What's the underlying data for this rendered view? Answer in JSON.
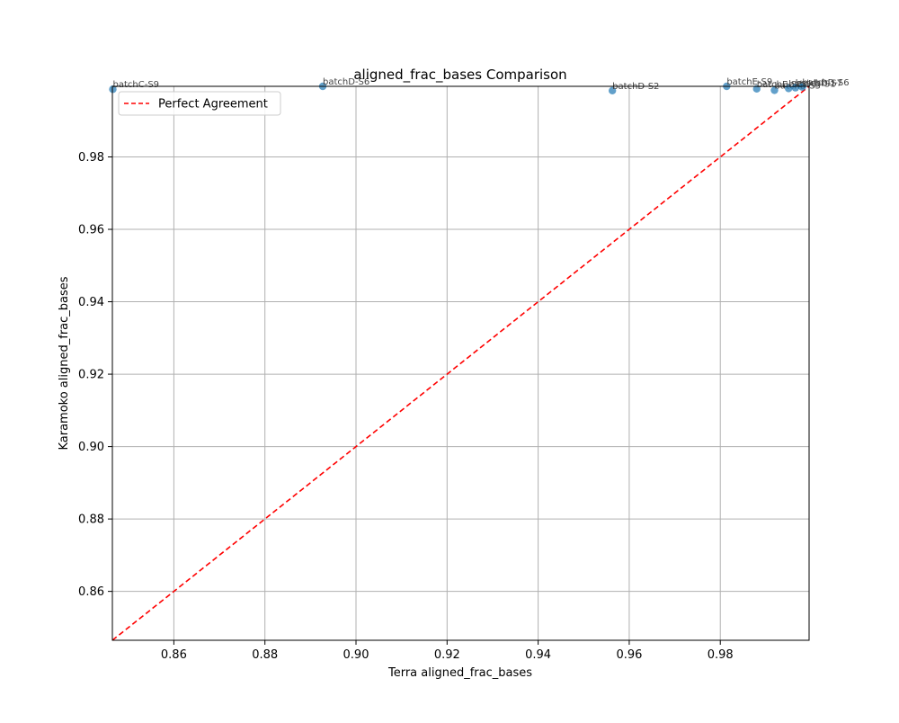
{
  "chart_data": {
    "type": "scatter",
    "title": "aligned_frac_bases Comparison",
    "xlabel": "Terra aligned_frac_bases",
    "ylabel": "Karamoko aligned_frac_bases",
    "xlim": [
      0.8465,
      0.9995
    ],
    "ylim": [
      0.8465,
      0.9995
    ],
    "xticks": [
      0.86,
      0.88,
      0.9,
      0.92,
      0.94,
      0.96,
      0.98
    ],
    "yticks": [
      0.86,
      0.88,
      0.9,
      0.92,
      0.94,
      0.96,
      0.98
    ],
    "xtick_labels": [
      "0.86",
      "0.88",
      "0.90",
      "0.92",
      "0.94",
      "0.96",
      "0.98"
    ],
    "ytick_labels": [
      "0.86",
      "0.88",
      "0.90",
      "0.92",
      "0.94",
      "0.96",
      "0.98"
    ],
    "grid": true,
    "legend": {
      "location": "upper-left",
      "entries": [
        {
          "label": "Perfect Agreement",
          "color": "#ff0000",
          "style": "dashed"
        }
      ]
    },
    "reference_line": {
      "from": [
        0.8465,
        0.8465
      ],
      "to": [
        0.9995,
        0.9995
      ],
      "color": "#ff0000"
    },
    "point_color": "#1f77b4",
    "points": [
      {
        "label": "batchC-S9",
        "x": 0.8466,
        "y": 0.9987
      },
      {
        "label": "batchD-S6",
        "x": 0.8927,
        "y": 0.9995
      },
      {
        "label": "batchD-S2",
        "x": 0.9563,
        "y": 0.9983
      },
      {
        "label": "batchE-S9",
        "x": 0.9814,
        "y": 0.9995
      },
      {
        "label": "batchE-S6",
        "x": 0.988,
        "y": 0.9988
      },
      {
        "label": "batchB-S3",
        "x": 0.9919,
        "y": 0.9984
      },
      {
        "label": "batchD-S1",
        "x": 0.995,
        "y": 0.9989
      },
      {
        "label": "batchD-S7",
        "x": 0.9965,
        "y": 0.9991
      },
      {
        "label": "batchD-S6",
        "x": 0.998,
        "y": 0.9993
      }
    ]
  }
}
